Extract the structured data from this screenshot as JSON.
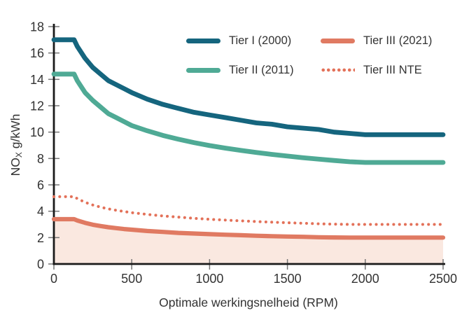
{
  "chart_data": {
    "type": "line",
    "title": "",
    "xlabel": "Optimale werkingsnelheid (RPM)",
    "ylabel": {
      "prefix": "NO",
      "sub": "X",
      "suffix": " g/kWh"
    },
    "xlim": [
      0,
      2500
    ],
    "ylim": [
      0,
      18
    ],
    "x_ticks": [
      0,
      500,
      1000,
      1500,
      2000,
      2500
    ],
    "y_ticks": [
      0,
      2,
      4,
      6,
      8,
      10,
      12,
      14,
      16,
      18
    ],
    "grid": false,
    "legend_position": "top-inside",
    "x": [
      0,
      130,
      150,
      200,
      250,
      300,
      350,
      400,
      450,
      500,
      600,
      700,
      800,
      900,
      1000,
      1100,
      1200,
      1300,
      1400,
      1500,
      1600,
      1700,
      1800,
      1900,
      2000,
      2500
    ],
    "series": [
      {
        "name": "Tier I (2000)",
        "style": "solid",
        "color": "#15657E",
        "values": [
          17.0,
          17.0,
          16.5,
          15.6,
          14.9,
          14.4,
          13.9,
          13.6,
          13.3,
          13.0,
          12.5,
          12.1,
          11.8,
          11.5,
          11.3,
          11.1,
          10.9,
          10.7,
          10.6,
          10.4,
          10.3,
          10.2,
          10.0,
          9.9,
          9.8,
          9.8
        ]
      },
      {
        "name": "Tier II (2011)",
        "style": "solid",
        "color": "#4FAA95",
        "values": [
          14.4,
          14.4,
          13.9,
          13.0,
          12.4,
          11.9,
          11.4,
          11.1,
          10.8,
          10.5,
          10.1,
          9.75,
          9.46,
          9.2,
          8.98,
          8.79,
          8.61,
          8.46,
          8.31,
          8.18,
          8.06,
          7.95,
          7.85,
          7.75,
          7.7,
          7.7
        ]
      },
      {
        "name": "Tier III (2021)",
        "style": "solid",
        "color": "#E07A62",
        "fill": "#FAE8E0",
        "values": [
          3.4,
          3.4,
          3.3,
          3.12,
          2.98,
          2.88,
          2.79,
          2.72,
          2.65,
          2.6,
          2.5,
          2.43,
          2.36,
          2.31,
          2.26,
          2.22,
          2.18,
          2.14,
          2.11,
          2.08,
          2.06,
          2.03,
          2.01,
          2.0,
          2.0,
          2.0
        ]
      },
      {
        "name": "Tier III NTE",
        "style": "dotted",
        "color": "#E37159",
        "values": [
          5.1,
          5.1,
          4.96,
          4.68,
          4.47,
          4.31,
          4.18,
          4.07,
          3.98,
          3.89,
          3.76,
          3.64,
          3.55,
          3.46,
          3.39,
          3.33,
          3.27,
          3.22,
          3.17,
          3.13,
          3.09,
          3.05,
          3.02,
          3.0,
          3.0,
          3.0
        ]
      }
    ],
    "colors": {
      "axis": "#1a1a1a",
      "tick": "#777777",
      "text": "#333333"
    }
  }
}
